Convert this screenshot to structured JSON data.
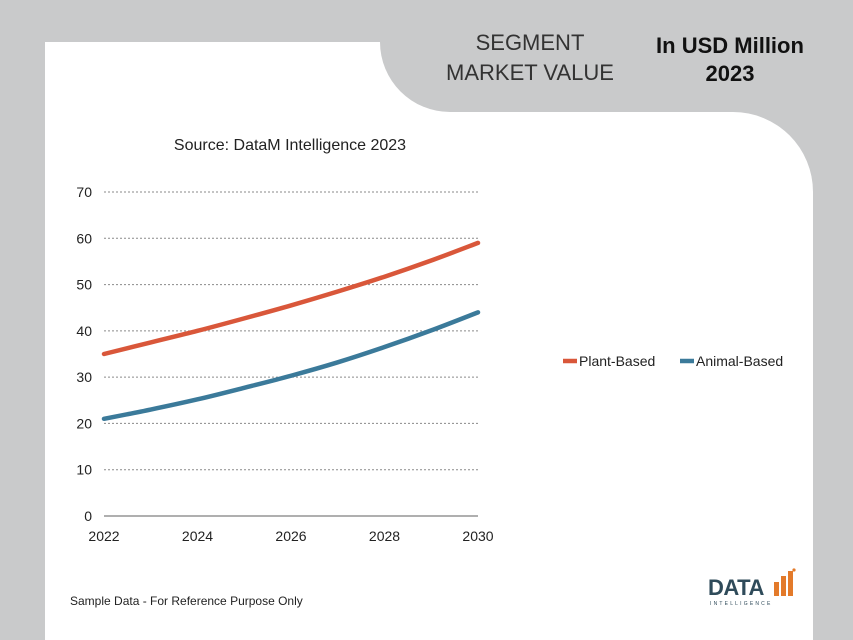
{
  "header": {
    "segment_line1": "SEGMENT",
    "segment_line2": "MARKET VALUE",
    "unit_line1": "In USD Million",
    "unit_line2": "2023"
  },
  "footnote": "Sample Data - For Reference Purpose Only",
  "logo": {
    "text": "DATA",
    "subtext": "INTELLIGENCE"
  },
  "colors": {
    "plant": "#d9573a",
    "animal": "#3b7a9a",
    "background": "#c9cacb"
  },
  "chart_data": {
    "type": "line",
    "title": "Source: DataM Intelligence 2023",
    "x": [
      2022,
      2023,
      2024,
      2025,
      2026,
      2027,
      2028,
      2029,
      2030
    ],
    "xticks": [
      "2022",
      "2024",
      "2026",
      "2028",
      "2030"
    ],
    "yticks": [
      "0",
      "10",
      "20",
      "30",
      "40",
      "50",
      "60",
      "70"
    ],
    "ylim": [
      0,
      70
    ],
    "xlim": [
      2022,
      2030
    ],
    "grid": true,
    "legend_position": "right",
    "series": [
      {
        "name": "Plant-Based",
        "values": [
          35,
          37.5,
          40,
          42.7,
          45.5,
          48.5,
          51.7,
          55.2,
          59
        ]
      },
      {
        "name": "Animal-Based",
        "values": [
          21,
          23,
          25.2,
          27.7,
          30.3,
          33.2,
          36.5,
          40.1,
          44
        ]
      }
    ]
  }
}
